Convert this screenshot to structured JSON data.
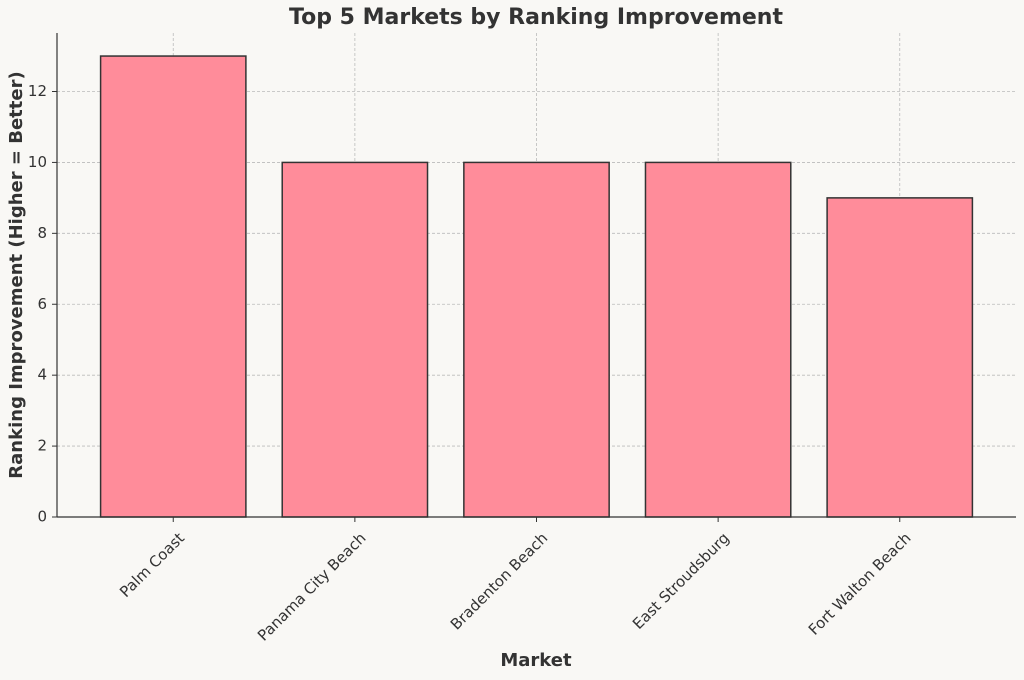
{
  "chart_data": {
    "type": "bar",
    "title": "Top 5 Markets by Ranking Improvement",
    "x_label": "Market",
    "y_label": "Ranking Improvement (Higher = Better)",
    "categories": [
      "Palm Coast",
      "Panama City Beach",
      "Bradenton Beach",
      "East Stroudsburg",
      "Fort Walton Beach"
    ],
    "values": [
      13,
      10,
      10,
      10,
      9
    ],
    "color": "#ff8c9a",
    "edge_color": "#333333",
    "ylim": [
      0,
      13.65
    ],
    "yticks": [
      0,
      2,
      4,
      6,
      8,
      10,
      12
    ],
    "grid": true
  }
}
